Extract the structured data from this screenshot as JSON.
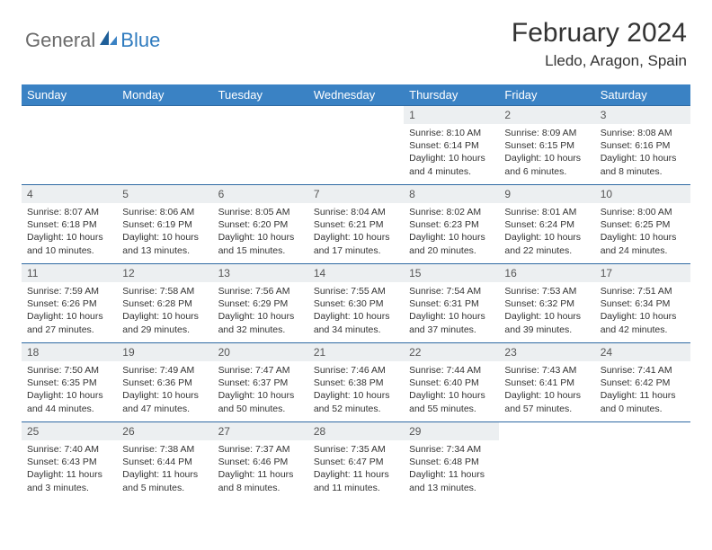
{
  "brand": {
    "text1": "General",
    "text2": "Blue"
  },
  "title": "February 2024",
  "location": "Lledo, Aragon, Spain",
  "colors": {
    "header_bg": "#3a82c4",
    "daynum_bg": "#eceff1",
    "rule": "#2f6aa3",
    "logo_gray": "#6b6b6b",
    "logo_blue": "#2f7bbf"
  },
  "weekdays": [
    "Sunday",
    "Monday",
    "Tuesday",
    "Wednesday",
    "Thursday",
    "Friday",
    "Saturday"
  ],
  "calendar": {
    "type": "table",
    "columns": 7,
    "rows": 5,
    "first_day_index": 4,
    "days": [
      {
        "n": 1,
        "sunrise": "8:10 AM",
        "sunset": "6:14 PM",
        "daylight": "10 hours and 4 minutes."
      },
      {
        "n": 2,
        "sunrise": "8:09 AM",
        "sunset": "6:15 PM",
        "daylight": "10 hours and 6 minutes."
      },
      {
        "n": 3,
        "sunrise": "8:08 AM",
        "sunset": "6:16 PM",
        "daylight": "10 hours and 8 minutes."
      },
      {
        "n": 4,
        "sunrise": "8:07 AM",
        "sunset": "6:18 PM",
        "daylight": "10 hours and 10 minutes."
      },
      {
        "n": 5,
        "sunrise": "8:06 AM",
        "sunset": "6:19 PM",
        "daylight": "10 hours and 13 minutes."
      },
      {
        "n": 6,
        "sunrise": "8:05 AM",
        "sunset": "6:20 PM",
        "daylight": "10 hours and 15 minutes."
      },
      {
        "n": 7,
        "sunrise": "8:04 AM",
        "sunset": "6:21 PM",
        "daylight": "10 hours and 17 minutes."
      },
      {
        "n": 8,
        "sunrise": "8:02 AM",
        "sunset": "6:23 PM",
        "daylight": "10 hours and 20 minutes."
      },
      {
        "n": 9,
        "sunrise": "8:01 AM",
        "sunset": "6:24 PM",
        "daylight": "10 hours and 22 minutes."
      },
      {
        "n": 10,
        "sunrise": "8:00 AM",
        "sunset": "6:25 PM",
        "daylight": "10 hours and 24 minutes."
      },
      {
        "n": 11,
        "sunrise": "7:59 AM",
        "sunset": "6:26 PM",
        "daylight": "10 hours and 27 minutes."
      },
      {
        "n": 12,
        "sunrise": "7:58 AM",
        "sunset": "6:28 PM",
        "daylight": "10 hours and 29 minutes."
      },
      {
        "n": 13,
        "sunrise": "7:56 AM",
        "sunset": "6:29 PM",
        "daylight": "10 hours and 32 minutes."
      },
      {
        "n": 14,
        "sunrise": "7:55 AM",
        "sunset": "6:30 PM",
        "daylight": "10 hours and 34 minutes."
      },
      {
        "n": 15,
        "sunrise": "7:54 AM",
        "sunset": "6:31 PM",
        "daylight": "10 hours and 37 minutes."
      },
      {
        "n": 16,
        "sunrise": "7:53 AM",
        "sunset": "6:32 PM",
        "daylight": "10 hours and 39 minutes."
      },
      {
        "n": 17,
        "sunrise": "7:51 AM",
        "sunset": "6:34 PM",
        "daylight": "10 hours and 42 minutes."
      },
      {
        "n": 18,
        "sunrise": "7:50 AM",
        "sunset": "6:35 PM",
        "daylight": "10 hours and 44 minutes."
      },
      {
        "n": 19,
        "sunrise": "7:49 AM",
        "sunset": "6:36 PM",
        "daylight": "10 hours and 47 minutes."
      },
      {
        "n": 20,
        "sunrise": "7:47 AM",
        "sunset": "6:37 PM",
        "daylight": "10 hours and 50 minutes."
      },
      {
        "n": 21,
        "sunrise": "7:46 AM",
        "sunset": "6:38 PM",
        "daylight": "10 hours and 52 minutes."
      },
      {
        "n": 22,
        "sunrise": "7:44 AM",
        "sunset": "6:40 PM",
        "daylight": "10 hours and 55 minutes."
      },
      {
        "n": 23,
        "sunrise": "7:43 AM",
        "sunset": "6:41 PM",
        "daylight": "10 hours and 57 minutes."
      },
      {
        "n": 24,
        "sunrise": "7:41 AM",
        "sunset": "6:42 PM",
        "daylight": "11 hours and 0 minutes."
      },
      {
        "n": 25,
        "sunrise": "7:40 AM",
        "sunset": "6:43 PM",
        "daylight": "11 hours and 3 minutes."
      },
      {
        "n": 26,
        "sunrise": "7:38 AM",
        "sunset": "6:44 PM",
        "daylight": "11 hours and 5 minutes."
      },
      {
        "n": 27,
        "sunrise": "7:37 AM",
        "sunset": "6:46 PM",
        "daylight": "11 hours and 8 minutes."
      },
      {
        "n": 28,
        "sunrise": "7:35 AM",
        "sunset": "6:47 PM",
        "daylight": "11 hours and 11 minutes."
      },
      {
        "n": 29,
        "sunrise": "7:34 AM",
        "sunset": "6:48 PM",
        "daylight": "11 hours and 13 minutes."
      }
    ]
  },
  "labels": {
    "sunrise": "Sunrise:",
    "sunset": "Sunset:",
    "daylight": "Daylight:"
  }
}
